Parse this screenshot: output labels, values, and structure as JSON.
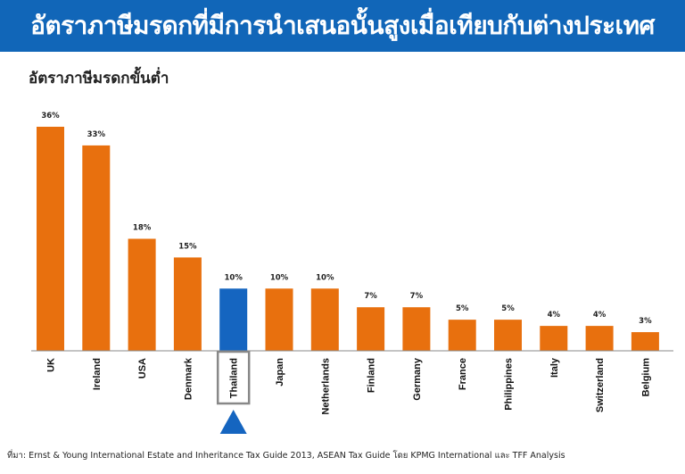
{
  "header": {
    "title": "อัตราภาษีมรดกที่มีการนำเสนอนั้นสูงเมื่อเทียบกับต่างประเทศ"
  },
  "chart_data": {
    "type": "bar",
    "title": "อัตราภาษีมรดกขั้นต่ำ",
    "categories": [
      "UK",
      "Ireland",
      "USA",
      "Denmark",
      "Thailand",
      "Japan",
      "Netherlands",
      "Finland",
      "Germany",
      "France",
      "Philippines",
      "Italy",
      "Switzerland",
      "Belgium"
    ],
    "values": [
      36,
      33,
      18,
      15,
      10,
      10,
      10,
      7,
      7,
      5,
      5,
      4,
      4,
      3
    ],
    "value_labels": [
      "36%",
      "33%",
      "18%",
      "15%",
      "10%",
      "10%",
      "10%",
      "7%",
      "7%",
      "5%",
      "5%",
      "4%",
      "4%",
      "3%"
    ],
    "highlight_category": "Thailand",
    "ylim": [
      0,
      36
    ],
    "grid": false,
    "colors": {
      "default": "#e8700e",
      "highlight": "#1565c0",
      "axis": "#888888"
    }
  },
  "footer": {
    "source": "ที่มา: Ernst & Young International Estate and Inheritance Tax Guide 2013,  ASEAN  Tax Guide โดย KPMG  International   และ TFF Analysis"
  }
}
